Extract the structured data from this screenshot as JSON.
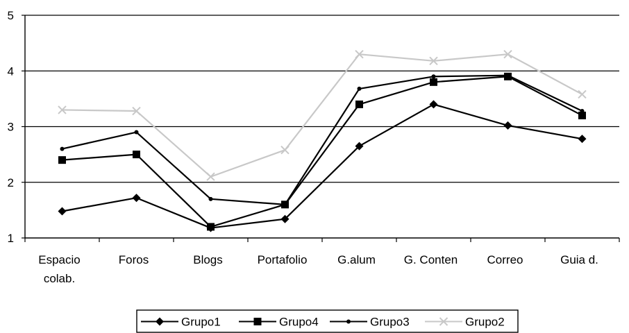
{
  "chart_data": {
    "type": "line",
    "title": "",
    "xlabel": "",
    "ylabel": "",
    "categories": [
      [
        "Espacio",
        "colab."
      ],
      [
        "Foros"
      ],
      [
        "Blogs"
      ],
      [
        "Portafolio"
      ],
      [
        "G.alum"
      ],
      [
        "G. Conten"
      ],
      [
        "Correo"
      ],
      [
        "Guia d."
      ]
    ],
    "ylim": [
      1,
      5
    ],
    "yticks": [
      "1",
      "2",
      "3",
      "4",
      "5"
    ],
    "grid": "horizontal",
    "legend": "bottom",
    "series": [
      {
        "name": "Grupo1",
        "marker": "diamond",
        "color": "#000000",
        "values": [
          1.48,
          1.72,
          1.18,
          1.34,
          2.65,
          3.4,
          3.02,
          2.78
        ]
      },
      {
        "name": "Grupo4",
        "marker": "square",
        "color": "#000000",
        "values": [
          2.4,
          2.5,
          1.2,
          1.6,
          3.4,
          3.8,
          3.9,
          3.2
        ]
      },
      {
        "name": "Grupo3",
        "marker": "star",
        "color": "#000000",
        "values": [
          2.6,
          2.9,
          1.7,
          1.6,
          3.68,
          3.9,
          3.92,
          3.28
        ]
      },
      {
        "name": "Grupo2",
        "marker": "x",
        "color": "#c8c8c8",
        "values": [
          3.3,
          3.28,
          2.1,
          2.58,
          4.3,
          4.18,
          4.3,
          3.58
        ]
      }
    ]
  }
}
